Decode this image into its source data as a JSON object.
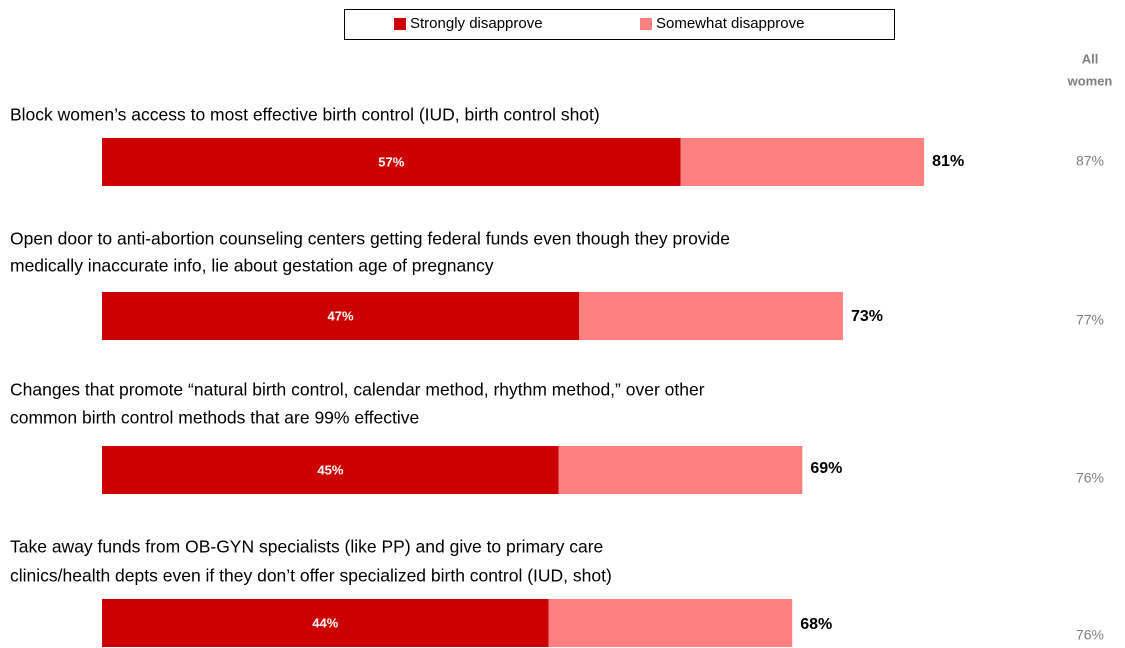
{
  "chart_data": {
    "type": "stacked-bar",
    "orientation": "horizontal",
    "categories": [
      [
        "Block women’s access to most effective birth control (IUD, birth control shot)"
      ],
      [
        "Open door to anti-abortion counseling centers getting federal funds even though they provide",
        "medically inaccurate info, lie about gestation age of pregnancy"
      ],
      [
        "Changes that promote “natural birth control, calendar method, rhythm method,” over other",
        "common birth control methods that are 99% effective"
      ],
      [
        "Take away funds from OB-GYN specialists (like PP) and give to primary care",
        "clinics/health depts even if they don’t offer specialized birth control (IUD, shot)"
      ]
    ],
    "series": [
      {
        "name": "Strongly disapprove",
        "color": "#cc0000",
        "values": [
          57,
          47,
          45,
          44
        ],
        "value_labels": [
          "57%",
          "47%",
          "45%",
          "44%"
        ]
      },
      {
        "name": "Somewhat disapprove",
        "color": "#ff8080",
        "values": [
          24,
          26,
          24,
          24
        ]
      }
    ],
    "totals": [
      81,
      73,
      69,
      68
    ],
    "total_labels": [
      "81%",
      "73%",
      "69%",
      "68%"
    ],
    "all_women_header": [
      "All",
      "women"
    ],
    "all_women": [
      87,
      77,
      76,
      76
    ],
    "all_women_labels": [
      "87%",
      "77%",
      "76%",
      "76%"
    ],
    "legend": "top"
  }
}
